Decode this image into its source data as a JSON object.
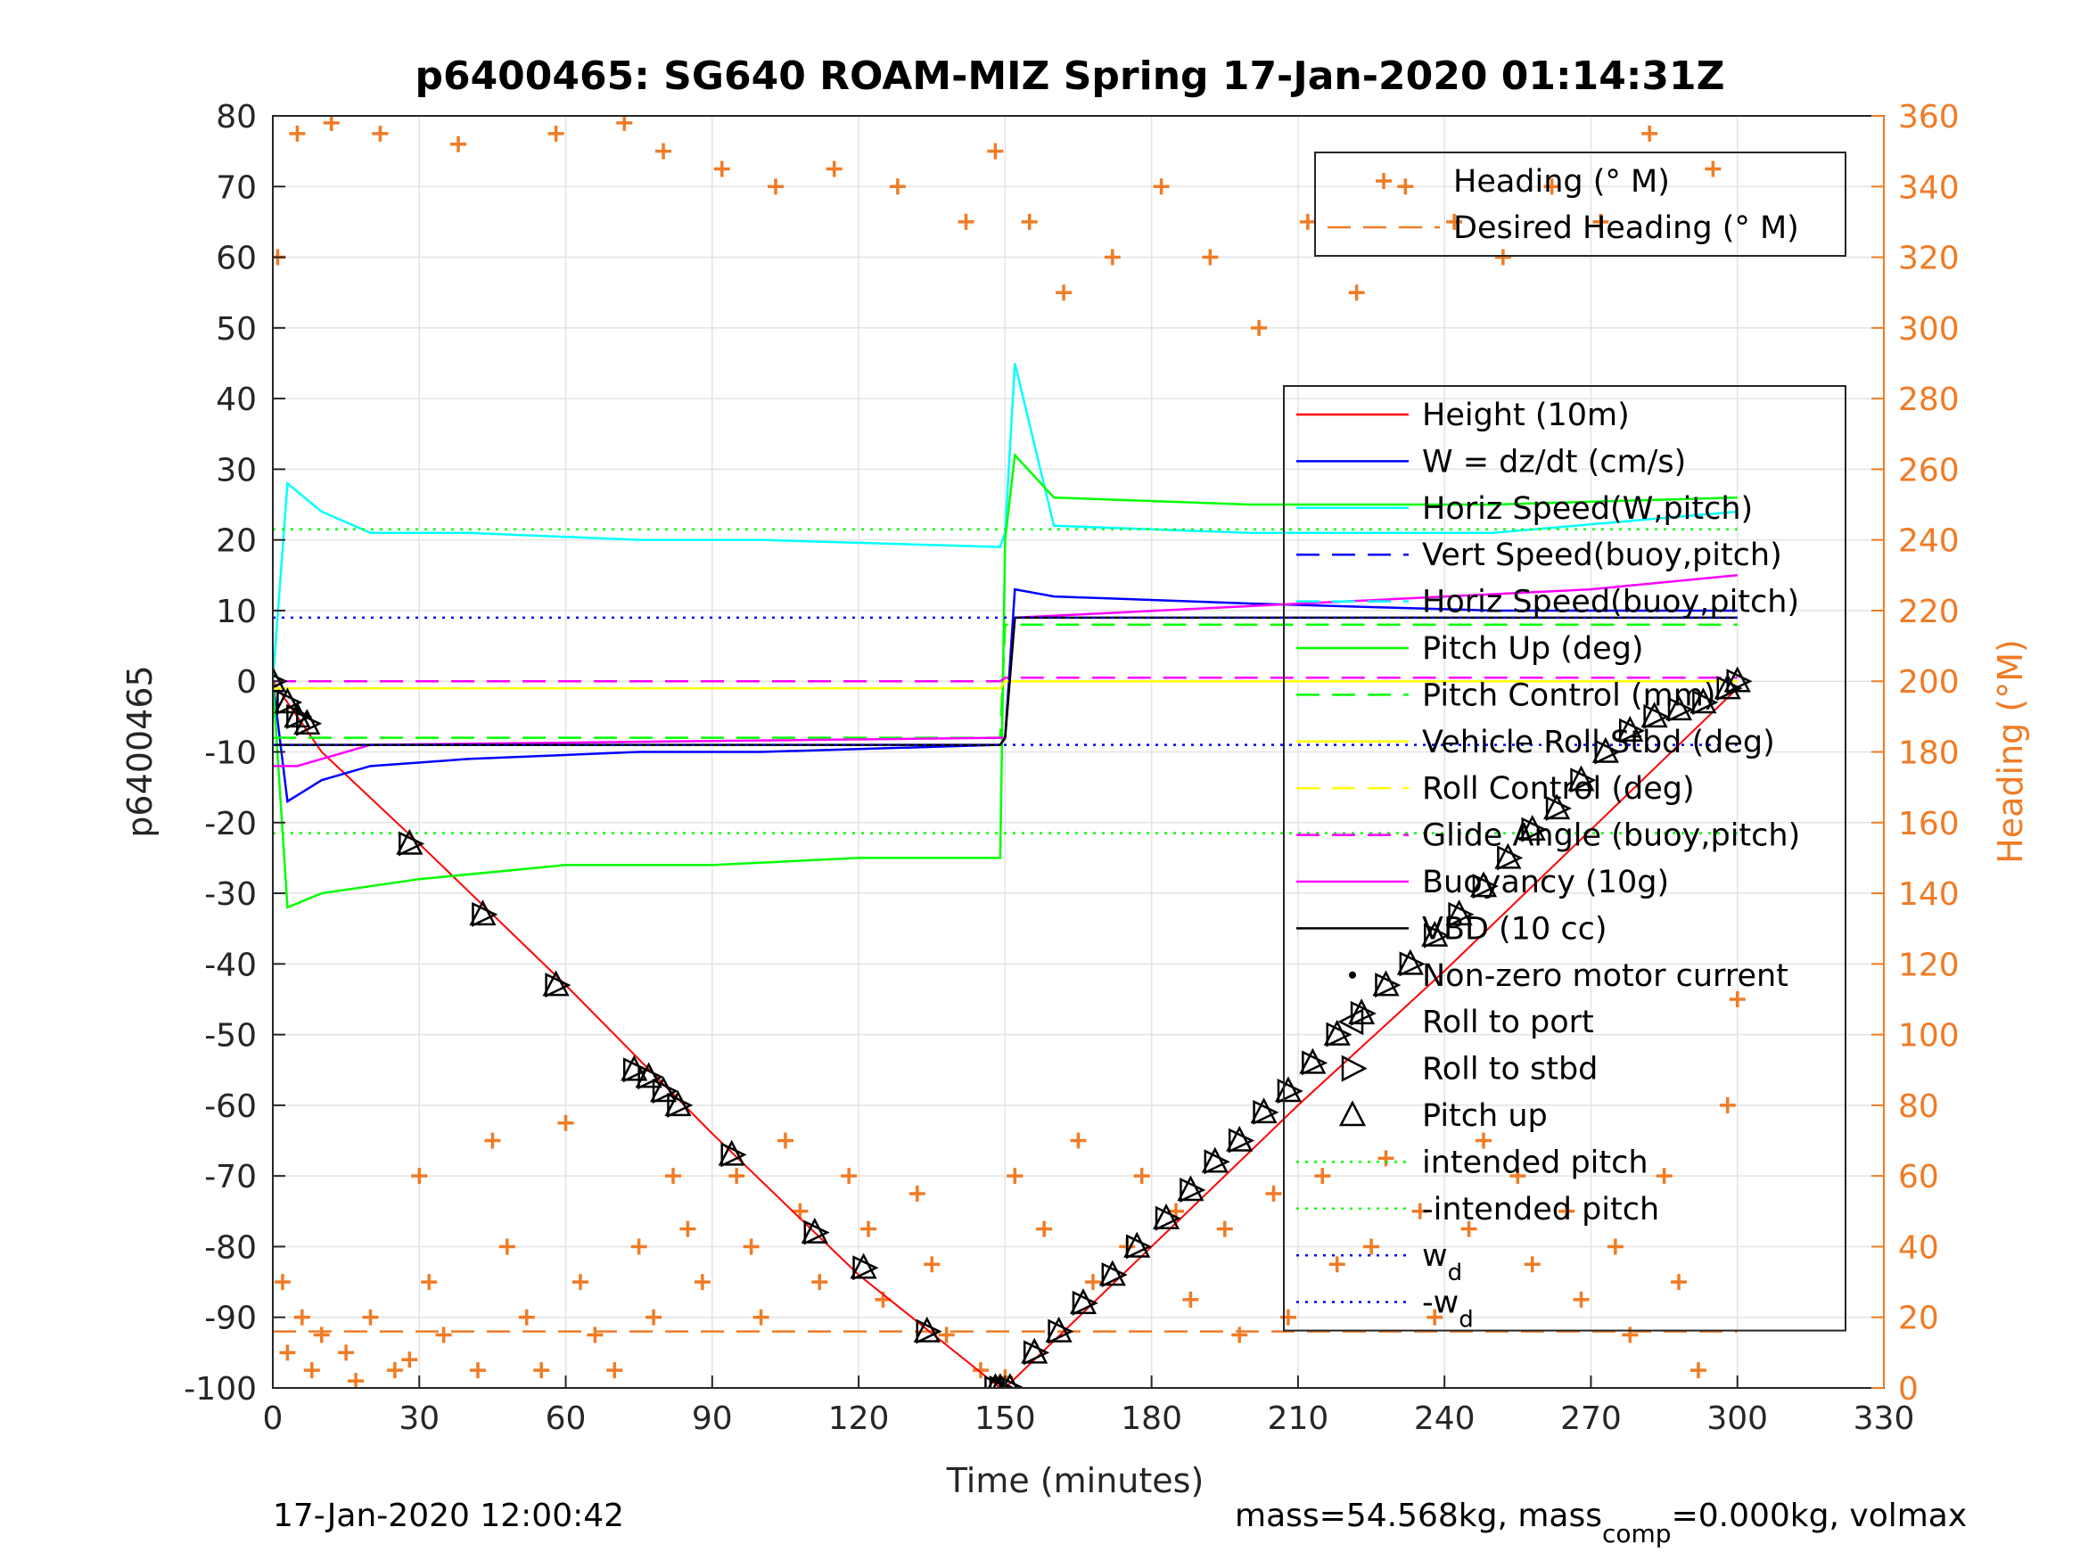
{
  "chart_data": {
    "type": "line",
    "title": "p6400465: SG640 ROAM-MIZ Spring 17-Jan-2020 01:14:31Z",
    "xlabel": "Time (minutes)",
    "ylabel": "p6400465",
    "ylabel_right": "Heading (°M)",
    "xlim": [
      0,
      330
    ],
    "ylim": [
      -100,
      80
    ],
    "ylim_right": [
      0,
      360
    ],
    "x_ticks": [
      0,
      30,
      60,
      90,
      120,
      150,
      180,
      210,
      240,
      270,
      300,
      330
    ],
    "y_ticks": [
      -100,
      -90,
      -80,
      -70,
      -60,
      -50,
      -40,
      -30,
      -20,
      -10,
      0,
      10,
      20,
      30,
      40,
      50,
      60,
      70,
      80
    ],
    "y_ticks_right": [
      0,
      20,
      40,
      60,
      80,
      100,
      120,
      140,
      160,
      180,
      200,
      220,
      240,
      260,
      280,
      300,
      320,
      340,
      360
    ],
    "grid": true,
    "footer_left": "17-Jan-2020 12:00:42",
    "footer_right": {
      "a": "mass=54.568kg, mass",
      "sub": "comp",
      "b": "=0.000kg, volmax"
    },
    "legend_heading": [
      {
        "name": "Heading (° M)",
        "color": "#f07b25",
        "style": "marker"
      },
      {
        "name": "Desired Heading (° M)",
        "color": "#f07b25",
        "style": "dashed"
      }
    ],
    "legend_main": [
      {
        "name": "Height (10m)",
        "color": "#ff0000",
        "style": "solid"
      },
      {
        "name": "W = dz/dt (cm/s)",
        "color": "#0000ff",
        "style": "solid"
      },
      {
        "name": "Horiz Speed(W,pitch)",
        "color": "#00ffff",
        "style": "solid"
      },
      {
        "name": "Vert Speed(buoy,pitch)",
        "color": "#0000ff",
        "style": "dashed"
      },
      {
        "name": "Horiz Speed(buoy,pitch)",
        "color": "#00ffff",
        "style": "dashed"
      },
      {
        "name": "Pitch Up (deg)",
        "color": "#00ff00",
        "style": "solid"
      },
      {
        "name": "Pitch Control (mm)",
        "color": "#00ff00",
        "style": "dashed"
      },
      {
        "name": "Vehicle Roll Stbd (deg)",
        "color": "#ffff00",
        "style": "solid"
      },
      {
        "name": "Roll Control (deg)",
        "color": "#ffff00",
        "style": "dashed"
      },
      {
        "name": "Glide Angle (buoy,pitch)",
        "color": "#ff00ff",
        "style": "dashed"
      },
      {
        "name": "Buoyancy (10g)",
        "color": "#ff00ff",
        "style": "solid"
      },
      {
        "name": "VBD (10 cc)",
        "color": "#000000",
        "style": "solid"
      },
      {
        "name": "Non-zero motor current",
        "color": "#000000",
        "style": "dot"
      },
      {
        "name": "Roll to port",
        "color": "#000000",
        "style": "triangle-left"
      },
      {
        "name": "Roll to stbd",
        "color": "#000000",
        "style": "triangle-right"
      },
      {
        "name": "Pitch up",
        "color": "#000000",
        "style": "triangle-up"
      },
      {
        "name": "intended pitch",
        "color": "#00ff00",
        "style": "dotted"
      },
      {
        "name": "-intended pitch",
        "color": "#00ff00",
        "style": "dotted"
      },
      {
        "name": "w",
        "sub": "d",
        "color": "#0000ff",
        "style": "dotted"
      },
      {
        "name": "-w",
        "sub": "d",
        "color": "#0000ff",
        "style": "dotted"
      }
    ],
    "series": [
      {
        "name": "Height (10m)",
        "color": "#ff0000",
        "x": [
          0,
          10,
          30,
          60,
          90,
          120,
          149,
          150,
          180,
          210,
          240,
          270,
          300
        ],
        "y": [
          0,
          -10,
          -23,
          -43,
          -64,
          -84,
          -100,
          -100,
          -80,
          -60,
          -41,
          -21,
          -1
        ]
      },
      {
        "name": "W = dz/dt (cm/s)",
        "color": "#0000ff",
        "x": [
          0,
          3,
          10,
          20,
          40,
          75,
          100,
          149,
          150,
          152,
          160,
          200,
          250,
          300
        ],
        "y": [
          0,
          -17,
          -14,
          -12,
          -11,
          -10,
          -10,
          -9,
          -8,
          13,
          12,
          11,
          10,
          10
        ]
      },
      {
        "name": "Horiz Speed(W,pitch)",
        "color": "#00ffff",
        "x": [
          0,
          3,
          10,
          20,
          40,
          75,
          100,
          149,
          150,
          152,
          160,
          200,
          250,
          300
        ],
        "y": [
          0,
          28,
          24,
          21,
          21,
          20,
          20,
          19,
          21,
          45,
          22,
          21,
          21,
          24
        ]
      },
      {
        "name": "Pitch Up (deg)",
        "color": "#00ff00",
        "x": [
          0,
          3,
          10,
          30,
          60,
          90,
          120,
          149,
          150,
          152,
          160,
          200,
          250,
          300
        ],
        "y": [
          0,
          -32,
          -30,
          -28,
          -26,
          -26,
          -25,
          -25,
          20,
          32,
          26,
          25,
          25,
          26
        ]
      },
      {
        "name": "Pitch Control (mm)",
        "color": "#00ff00",
        "x": [
          0,
          149,
          150,
          300
        ],
        "y": [
          -8,
          -8,
          8,
          8
        ]
      },
      {
        "name": "Vehicle Roll Stbd (deg)",
        "color": "#ffff00",
        "x": [
          0,
          149,
          150,
          300
        ],
        "y": [
          -1,
          -1,
          0,
          0
        ]
      },
      {
        "name": "Glide Angle (buoy,pitch)",
        "color": "#ff00ff",
        "x": [
          0,
          149,
          150,
          300
        ],
        "y": [
          0,
          0,
          0.5,
          0.5
        ]
      },
      {
        "name": "Buoyancy (10g)",
        "color": "#ff00ff",
        "x": [
          0,
          5,
          10,
          20,
          149,
          150,
          152,
          270,
          300
        ],
        "y": [
          -12,
          -12,
          -11,
          -9,
          -8,
          -8,
          9,
          13,
          15
        ]
      },
      {
        "name": "VBD (10 cc)",
        "color": "#000000",
        "x": [
          0,
          3,
          149,
          150,
          152,
          300
        ],
        "y": [
          -9,
          -9,
          -9,
          -8,
          9,
          9
        ]
      },
      {
        "name": "intended pitch",
        "color": "#00ff00",
        "x": [
          0,
          300
        ],
        "y": [
          21.5,
          21.5
        ]
      },
      {
        "name": "-intended pitch",
        "color": "#00ff00",
        "x": [
          0,
          300
        ],
        "y": [
          -21.5,
          -21.5
        ]
      },
      {
        "name": "w_d",
        "color": "#0000ff",
        "x": [
          0,
          300
        ],
        "y": [
          9,
          9
        ]
      },
      {
        "name": "-w_d",
        "color": "#0000ff",
        "x": [
          0,
          300
        ],
        "y": [
          -9,
          -9
        ]
      },
      {
        "name": "Desired Heading (° M)",
        "color": "#f07b25",
        "axis": "right",
        "x": [
          0,
          300
        ],
        "y": [
          16,
          16
        ]
      },
      {
        "name": "Heading (° M)",
        "color": "#f07b25",
        "axis": "right",
        "marker": "+",
        "x": [
          1,
          2,
          3,
          5,
          6,
          8,
          10,
          12,
          15,
          17,
          20,
          22,
          25,
          28,
          30,
          32,
          35,
          38,
          42,
          45,
          48,
          52,
          55,
          58,
          60,
          63,
          66,
          70,
          72,
          75,
          78,
          80,
          82,
          85,
          88,
          92,
          95,
          98,
          100,
          103,
          105,
          108,
          112,
          115,
          118,
          122,
          125,
          128,
          132,
          135,
          138,
          142,
          145,
          148,
          150,
          152,
          155,
          158,
          162,
          165,
          168,
          172,
          175,
          178,
          182,
          185,
          188,
          192,
          195,
          198,
          202,
          205,
          208,
          212,
          215,
          218,
          222,
          225,
          228,
          232,
          235,
          238,
          242,
          245,
          248,
          252,
          255,
          258,
          262,
          265,
          268,
          272,
          275,
          278,
          282,
          285,
          288,
          292,
          295,
          298,
          300
        ],
        "y": [
          320,
          30,
          10,
          355,
          20,
          5,
          15,
          358,
          10,
          2,
          20,
          355,
          5,
          8,
          60,
          30,
          15,
          352,
          5,
          70,
          40,
          20,
          5,
          355,
          75,
          30,
          15,
          5,
          358,
          40,
          20,
          350,
          60,
          45,
          30,
          345,
          60,
          40,
          20,
          340,
          70,
          50,
          30,
          345,
          60,
          45,
          25,
          340,
          55,
          35,
          15,
          330,
          5,
          350,
          3,
          60,
          330,
          45,
          310,
          70,
          30,
          320,
          40,
          60,
          340,
          50,
          25,
          320,
          45,
          15,
          300,
          55,
          20,
          330,
          60,
          35,
          310,
          40,
          65,
          340,
          50,
          20,
          330,
          45,
          70,
          320,
          60,
          35,
          340,
          50,
          25,
          330,
          40,
          15,
          355,
          60,
          30,
          5,
          345,
          80,
          110
        ]
      }
    ],
    "events": {
      "pitch_up": {
        "x": [
          0,
          3,
          5,
          7,
          28,
          43,
          58,
          74,
          77,
          80,
          83,
          94,
          111,
          121,
          134,
          148,
          149,
          151,
          156,
          161,
          166,
          172,
          177,
          183,
          188,
          193,
          198,
          203,
          208,
          213,
          218,
          223,
          228,
          233,
          238,
          243,
          248,
          253,
          258,
          263,
          268,
          273,
          278,
          283,
          288,
          293,
          298,
          300
        ],
        "y": [
          0,
          -3,
          -5,
          -6,
          -23,
          -33,
          -43,
          -55,
          -56,
          -58,
          -60,
          -67,
          -78,
          -83,
          -92,
          -100,
          -100,
          -100,
          -95,
          -92,
          -88,
          -84,
          -80,
          -76,
          -72,
          -68,
          -65,
          -61,
          -58,
          -54,
          -50,
          -47,
          -43,
          -40,
          -36,
          -33,
          -29,
          -25,
          -21,
          -18,
          -14,
          -10,
          -7,
          -5,
          -4,
          -3,
          -1,
          0
        ]
      }
    }
  }
}
